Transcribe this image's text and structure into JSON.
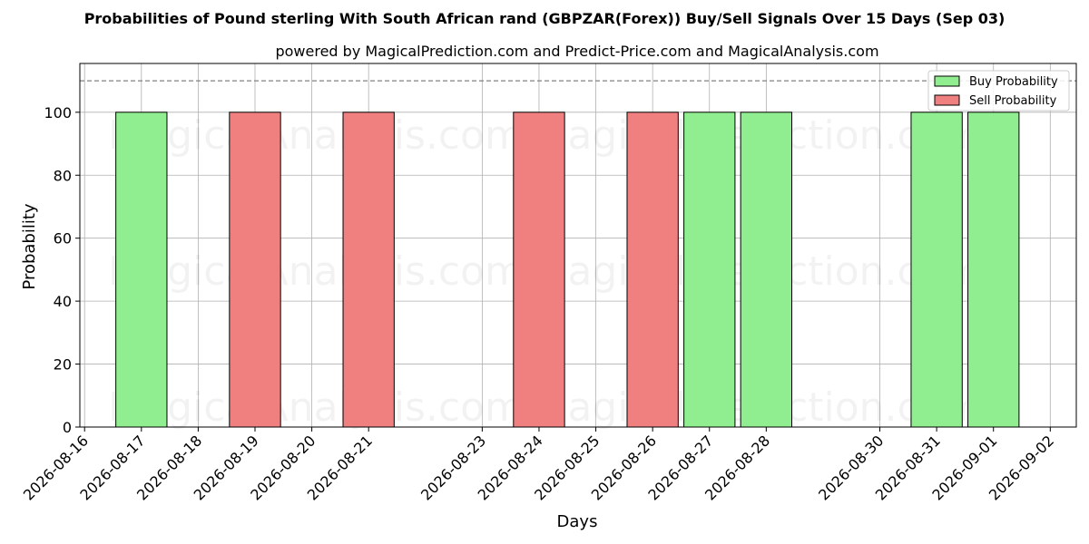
{
  "chart_data": {
    "type": "bar",
    "title": "Probabilities of Pound sterling With South African rand (GBPZAR(Forex)) Buy/Sell Signals Over 15 Days (Sep 03)",
    "subtitle": "powered by MagicalPrediction.com and Predict-Price.com and MagicalAnalysis.com",
    "xlabel": "Days",
    "ylabel": "Probability",
    "xlim": [
      "2026-08-15T22:00",
      "2026-09-02T11:00"
    ],
    "ylim": [
      0,
      115.5
    ],
    "x_ticks": [
      "2026-08-16",
      "2026-08-17",
      "2026-08-18",
      "2026-08-19",
      "2026-08-20",
      "2026-08-21",
      "2026-08-23",
      "2026-08-24",
      "2026-08-25",
      "2026-08-26",
      "2026-08-27",
      "2026-08-28",
      "2026-08-30",
      "2026-08-31",
      "2026-09-01",
      "2026-09-02"
    ],
    "y_ticks": [
      0,
      20,
      40,
      60,
      80,
      100
    ],
    "reference_line": 110,
    "grid": true,
    "legend_position": "top-right",
    "watermarks": [
      "MagicalAnalysis.com",
      "MagicalPrediction.com"
    ],
    "series": [
      {
        "name": "Buy Probability",
        "color": "#90ee90",
        "points": [
          {
            "x": "2026-08-17",
            "y": 100
          },
          {
            "x": "2026-08-27",
            "y": 100
          },
          {
            "x": "2026-08-28",
            "y": 100
          },
          {
            "x": "2026-08-31",
            "y": 100
          },
          {
            "x": "2026-09-01",
            "y": 100
          }
        ]
      },
      {
        "name": "Sell Probability",
        "color": "#f08080",
        "points": [
          {
            "x": "2026-08-19",
            "y": 100
          },
          {
            "x": "2026-08-21",
            "y": 100
          },
          {
            "x": "2026-08-24",
            "y": 100
          },
          {
            "x": "2026-08-26",
            "y": 100
          }
        ]
      }
    ]
  }
}
